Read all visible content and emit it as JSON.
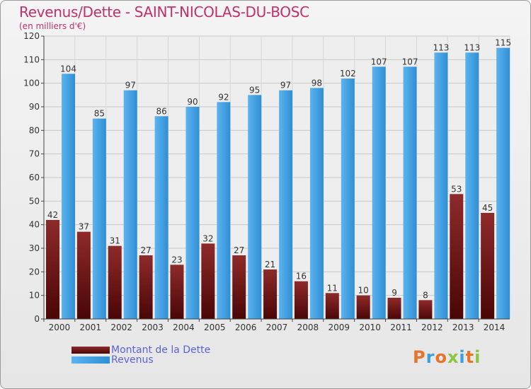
{
  "header": {
    "title": "Revenus/Dette - SAINT-NICOLAS-DU-BOSC",
    "subtitle": "(en milliers d'€)"
  },
  "legend": {
    "items": [
      {
        "label": "Montant de la Dette",
        "color": "#7a1a1a"
      },
      {
        "label": "Revenus",
        "color": "#3d9ee0"
      }
    ]
  },
  "logo": {
    "letters": [
      "P",
      "r",
      "o",
      "x",
      "i",
      "t",
      "i"
    ],
    "colors": [
      "#e8732a",
      "#3aa0d8",
      "#e8732a",
      "#8cc63f",
      "#3aa0d8",
      "#e8732a",
      "#8cc63f"
    ]
  },
  "chart_data": {
    "type": "bar",
    "title": "Revenus/Dette - SAINT-NICOLAS-DU-BOSC",
    "subtitle": "(en milliers d'€)",
    "categories": [
      "2000",
      "2001",
      "2002",
      "2003",
      "2004",
      "2005",
      "2006",
      "2007",
      "2008",
      "2009",
      "2010",
      "2011",
      "2012",
      "2013",
      "2014"
    ],
    "series": [
      {
        "name": "Montant de la Dette",
        "color": "#7a1a1a",
        "values": [
          42,
          37,
          31,
          27,
          23,
          32,
          27,
          21,
          16,
          11,
          10,
          9,
          8,
          53,
          45
        ]
      },
      {
        "name": "Revenus",
        "color": "#3d9ee0",
        "values": [
          104,
          85,
          97,
          86,
          90,
          92,
          95,
          97,
          98,
          102,
          107,
          107,
          113,
          113,
          115
        ]
      }
    ],
    "ylim": [
      0,
      120
    ],
    "yticks": [
      0,
      10,
      20,
      30,
      40,
      50,
      60,
      70,
      80,
      90,
      100,
      110,
      120
    ],
    "grid": true,
    "legend_position": "bottom-left",
    "xlabel": "",
    "ylabel": ""
  }
}
